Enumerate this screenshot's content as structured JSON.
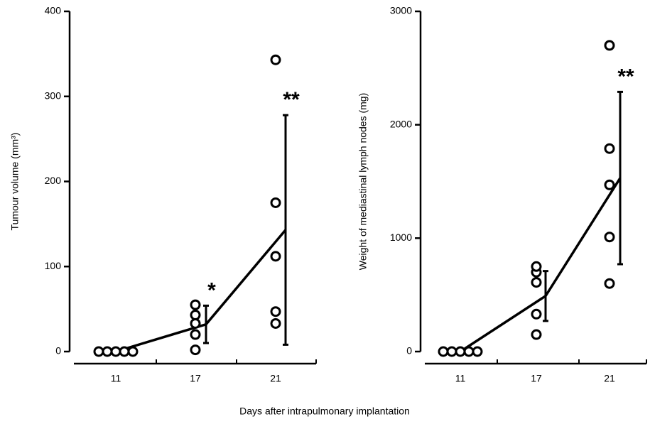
{
  "xlabel": "Days after intrapulmonary implantation",
  "chart_data": [
    {
      "type": "scatter",
      "ylabel": "Tumour volume (mm³)",
      "categories": [
        "11",
        "17",
        "21"
      ],
      "points": [
        [
          0,
          0,
          0,
          0,
          0
        ],
        [
          2,
          20,
          33,
          43,
          55
        ],
        [
          33,
          47,
          112,
          175,
          343
        ]
      ],
      "mean": [
        0,
        32,
        143
      ],
      "sd": [
        0,
        22,
        135
      ],
      "annotations": [
        null,
        "*",
        "**"
      ],
      "ylim": [
        0,
        400
      ],
      "yticks": [
        0,
        100,
        200,
        300,
        400
      ],
      "color": "#000000"
    },
    {
      "type": "scatter",
      "ylabel": "Weight of mediastinal lymph nodes (mg)",
      "categories": [
        "11",
        "17",
        "21"
      ],
      "points": [
        [
          0,
          0,
          0,
          0,
          0
        ],
        [
          150,
          330,
          610,
          700,
          750
        ],
        [
          600,
          1010,
          1470,
          1790,
          2700
        ]
      ],
      "mean": [
        0,
        490,
        1530
      ],
      "sd": [
        0,
        220,
        760
      ],
      "annotations": [
        null,
        null,
        "**"
      ],
      "ylim": [
        0,
        3000
      ],
      "yticks": [
        0,
        1000,
        2000,
        3000
      ],
      "color": "#000000"
    }
  ]
}
